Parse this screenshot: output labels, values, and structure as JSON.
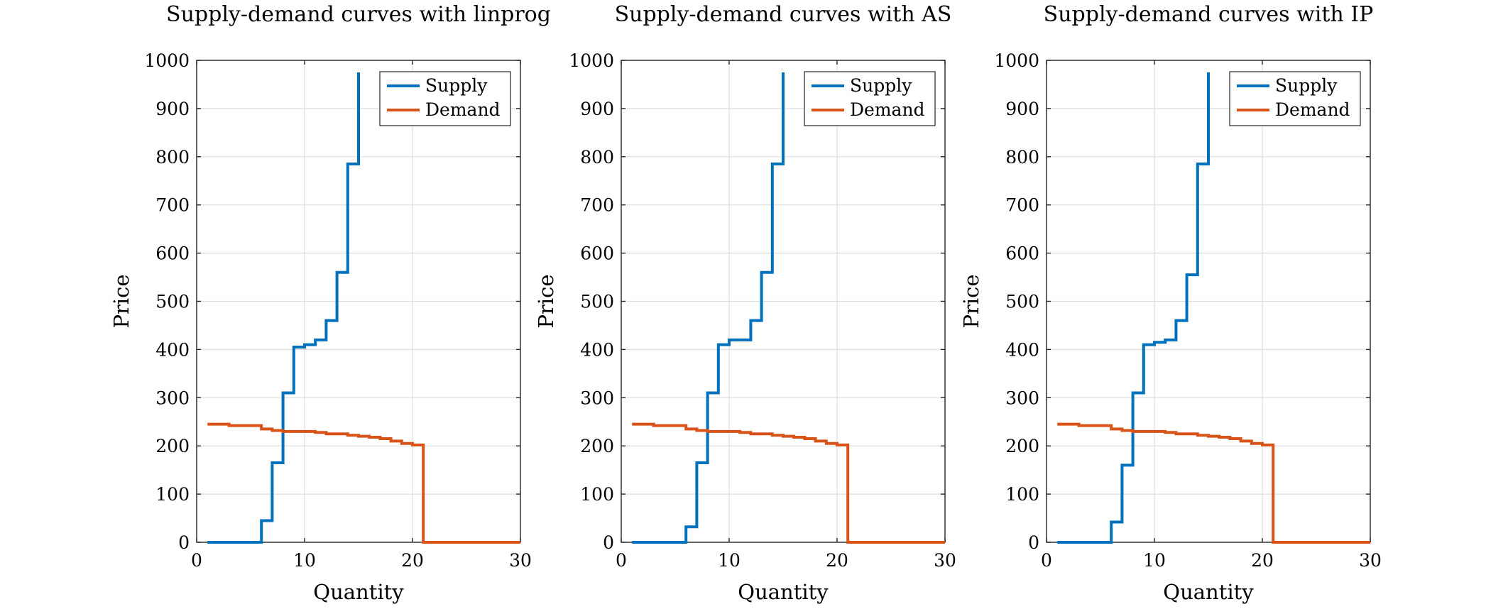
{
  "chart_data": [
    {
      "type": "line",
      "title": "Supply-demand curves with linprog",
      "xlabel": "Quantity",
      "ylabel": "Price",
      "xlim": [
        0,
        30
      ],
      "ylim": [
        0,
        1000
      ],
      "xticks": [
        0,
        10,
        20,
        30
      ],
      "yticks": [
        0,
        100,
        200,
        300,
        400,
        500,
        600,
        700,
        800,
        900,
        1000
      ],
      "grid": true,
      "legend_position": "top-right",
      "step": "stairs",
      "series": [
        {
          "name": "Supply",
          "color": "#0072BD",
          "x": [
            1,
            2,
            3,
            4,
            5,
            6,
            7,
            8,
            9,
            10,
            11,
            12,
            13,
            14,
            15,
            15
          ],
          "y": [
            0,
            0,
            0,
            0,
            0,
            45,
            165,
            310,
            405,
            410,
            420,
            460,
            560,
            785,
            785,
            975
          ]
        },
        {
          "name": "Demand",
          "color": "#D95319",
          "x": [
            1,
            2,
            3,
            4,
            5,
            6,
            7,
            8,
            9,
            10,
            11,
            12,
            13,
            14,
            15,
            16,
            17,
            18,
            19,
            20,
            21,
            21,
            22,
            23,
            24,
            25,
            26,
            27,
            28,
            29,
            30
          ],
          "y": [
            245,
            245,
            242,
            242,
            242,
            235,
            232,
            230,
            230,
            230,
            228,
            225,
            225,
            222,
            220,
            218,
            215,
            210,
            205,
            202,
            202,
            0,
            0,
            0,
            0,
            0,
            0,
            0,
            0,
            0,
            0
          ]
        }
      ]
    },
    {
      "type": "line",
      "title": "Supply-demand curves with AS",
      "xlabel": "Quantity",
      "ylabel": "Price",
      "xlim": [
        0,
        30
      ],
      "ylim": [
        0,
        1000
      ],
      "xticks": [
        0,
        10,
        20,
        30
      ],
      "yticks": [
        0,
        100,
        200,
        300,
        400,
        500,
        600,
        700,
        800,
        900,
        1000
      ],
      "grid": true,
      "legend_position": "top-right",
      "step": "stairs",
      "series": [
        {
          "name": "Supply",
          "color": "#0072BD",
          "x": [
            1,
            2,
            3,
            4,
            5,
            6,
            7,
            8,
            9,
            10,
            11,
            12,
            13,
            14,
            15,
            15
          ],
          "y": [
            0,
            0,
            0,
            0,
            0,
            32,
            165,
            310,
            410,
            420,
            420,
            460,
            560,
            785,
            785,
            975
          ]
        },
        {
          "name": "Demand",
          "color": "#D95319",
          "x": [
            1,
            2,
            3,
            4,
            5,
            6,
            7,
            8,
            9,
            10,
            11,
            12,
            13,
            14,
            15,
            16,
            17,
            18,
            19,
            20,
            21,
            21,
            22,
            23,
            24,
            25,
            26,
            27,
            28,
            29,
            30
          ],
          "y": [
            245,
            245,
            242,
            242,
            242,
            235,
            232,
            230,
            230,
            230,
            228,
            225,
            225,
            222,
            220,
            218,
            215,
            210,
            205,
            202,
            202,
            0,
            0,
            0,
            0,
            0,
            0,
            0,
            0,
            0,
            0
          ]
        }
      ]
    },
    {
      "type": "line",
      "title": "Supply-demand curves with IP",
      "xlabel": "Quantity",
      "ylabel": "Price",
      "xlim": [
        0,
        30
      ],
      "ylim": [
        0,
        1000
      ],
      "xticks": [
        0,
        10,
        20,
        30
      ],
      "yticks": [
        0,
        100,
        200,
        300,
        400,
        500,
        600,
        700,
        800,
        900,
        1000
      ],
      "grid": true,
      "legend_position": "top-right",
      "step": "stairs",
      "series": [
        {
          "name": "Supply",
          "color": "#0072BD",
          "x": [
            1,
            2,
            3,
            4,
            5,
            6,
            7,
            8,
            9,
            10,
            11,
            12,
            13,
            14,
            15,
            15
          ],
          "y": [
            0,
            0,
            0,
            0,
            0,
            42,
            160,
            310,
            410,
            415,
            420,
            460,
            555,
            785,
            785,
            975
          ]
        },
        {
          "name": "Demand",
          "color": "#D95319",
          "x": [
            1,
            2,
            3,
            4,
            5,
            6,
            7,
            8,
            9,
            10,
            11,
            12,
            13,
            14,
            15,
            16,
            17,
            18,
            19,
            20,
            21,
            21,
            22,
            23,
            24,
            25,
            26,
            27,
            28,
            29,
            30
          ],
          "y": [
            245,
            245,
            242,
            242,
            242,
            235,
            232,
            230,
            230,
            230,
            228,
            225,
            225,
            222,
            220,
            218,
            215,
            210,
            205,
            202,
            202,
            0,
            0,
            0,
            0,
            0,
            0,
            0,
            0,
            0,
            0
          ]
        }
      ]
    }
  ]
}
